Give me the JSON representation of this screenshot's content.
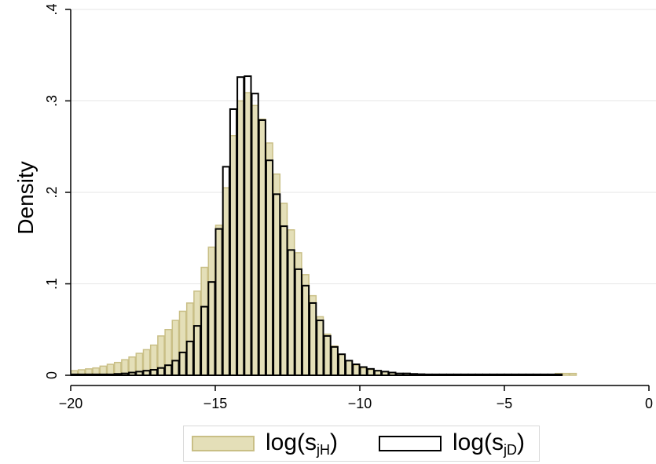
{
  "chart_data": {
    "type": "bar",
    "ylabel": "Density",
    "xlabel": "",
    "xlim": [
      -20,
      0
    ],
    "ylim": [
      0,
      0.4
    ],
    "x_ticks": [
      {
        "value": -20,
        "label": "−20"
      },
      {
        "value": -15,
        "label": "−15"
      },
      {
        "value": -10,
        "label": "−10"
      },
      {
        "value": -5,
        "label": "−5"
      },
      {
        "value": 0,
        "label": "0"
      }
    ],
    "y_ticks": [
      {
        "value": 0,
        "label": "0"
      },
      {
        "value": 0.1,
        "label": ".1"
      },
      {
        "value": 0.2,
        "label": ".2"
      },
      {
        "value": 0.3,
        "label": ".3"
      },
      {
        "value": 0.4,
        "label": ".4"
      }
    ],
    "grid": "horizontal",
    "legend_position": "bottom",
    "bin_width": 0.25,
    "series": [
      {
        "name": "log(s_jH)",
        "name_base": "log(s",
        "name_sub": "jH",
        "name_close": ")",
        "style": "filled",
        "fill": "#e4dfb8",
        "stroke": "#c9bf86",
        "bin_start": -20,
        "values": [
          0.005,
          0.006,
          0.007,
          0.008,
          0.01,
          0.012,
          0.014,
          0.017,
          0.02,
          0.024,
          0.028,
          0.033,
          0.043,
          0.05,
          0.06,
          0.07,
          0.079,
          0.092,
          0.118,
          0.14,
          0.164,
          0.205,
          0.262,
          0.3,
          0.309,
          0.295,
          0.28,
          0.254,
          0.22,
          0.188,
          0.159,
          0.134,
          0.11,
          0.087,
          0.064,
          0.045,
          0.032,
          0.023,
          0.016,
          0.011,
          0.008,
          0.006,
          0.005,
          0.004,
          0.003,
          0.002,
          0.002,
          0.0015,
          0.0012,
          0.001,
          0.001,
          0.001,
          0.001,
          0.001,
          0.001,
          0.001,
          0.001,
          0.001,
          0.001,
          0.001,
          0.001,
          0.001,
          0.001,
          0.001,
          0.001,
          0.001,
          0.001,
          0.002,
          0.002,
          0.002
        ]
      },
      {
        "name": "log(s_jD)",
        "name_base": "log(s",
        "name_sub": "jD",
        "name_close": ")",
        "style": "outline",
        "fill": "none",
        "stroke": "#000000",
        "bin_start": -20,
        "values": [
          0.001,
          0.001,
          0.001,
          0.001,
          0.001,
          0.001,
          0.0015,
          0.002,
          0.003,
          0.004,
          0.005,
          0.006,
          0.008,
          0.011,
          0.016,
          0.025,
          0.037,
          0.054,
          0.075,
          0.102,
          0.16,
          0.228,
          0.291,
          0.326,
          0.327,
          0.308,
          0.279,
          0.235,
          0.198,
          0.163,
          0.137,
          0.116,
          0.098,
          0.079,
          0.06,
          0.043,
          0.031,
          0.023,
          0.016,
          0.012,
          0.009,
          0.007,
          0.005,
          0.004,
          0.003,
          0.002,
          0.002,
          0.0015,
          0.0012,
          0.001,
          0.001,
          0.001,
          0.001,
          0.001,
          0.001,
          0.001,
          0.001,
          0.001,
          0.001,
          0.001,
          0.001,
          0.001,
          0.001,
          0.001,
          0.001,
          0.001,
          0.001,
          0.001
        ]
      }
    ]
  }
}
